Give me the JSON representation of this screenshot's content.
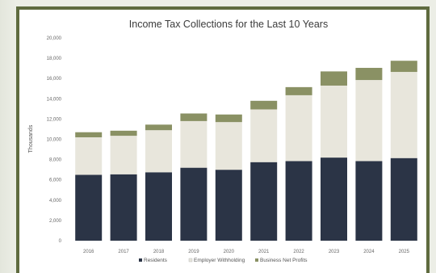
{
  "chart_data": {
    "type": "bar",
    "stacked": true,
    "title": "Income Tax Collections for the Last 10 Years",
    "xlabel": "",
    "ylabel": "Thousands",
    "ylim": [
      0,
      20000
    ],
    "yticks": [
      "0",
      "2,000",
      "4,000",
      "6,000",
      "8,000",
      "10,000",
      "12,000",
      "14,000",
      "16,000",
      "18,000",
      "20,000"
    ],
    "categories": [
      "2016",
      "2017",
      "2018",
      "2019",
      "2020",
      "2021",
      "2022",
      "2023",
      "2024",
      "2025"
    ],
    "series": [
      {
        "name": "Residents",
        "color": "#2b3446",
        "values": [
          6500,
          6550,
          6750,
          7200,
          7000,
          7750,
          7850,
          8200,
          7850,
          8150
        ]
      },
      {
        "name": "Employer Withholding",
        "color": "#e8e6dc",
        "values": [
          3700,
          3800,
          4150,
          4600,
          4700,
          5200,
          6500,
          7100,
          8000,
          8500
        ]
      },
      {
        "name": "Business Net Profits",
        "color": "#8a9164",
        "values": [
          500,
          500,
          550,
          750,
          750,
          850,
          800,
          1400,
          1200,
          1100
        ]
      }
    ],
    "grid": false,
    "legend_position": "bottom"
  }
}
